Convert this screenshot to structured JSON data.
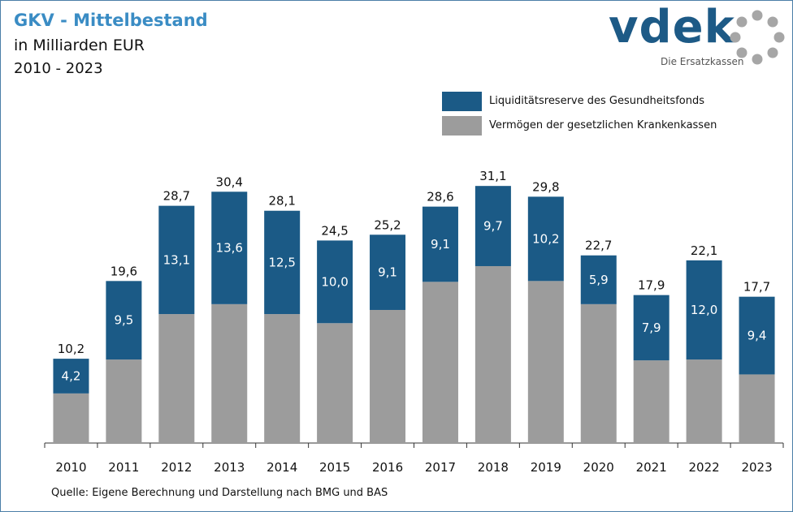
{
  "header": {
    "title": "GKV - Mittelbestand",
    "subtitle": "in Milliarden EUR",
    "period": "2010 - 2023"
  },
  "logo": {
    "wordmark": "vdek",
    "tagline": "Die Ersatzkassen"
  },
  "source": "Quelle: Eigene Berechnung und Darstellung nach BMG und BAS",
  "colors": {
    "reserve": "#1b5a86",
    "assets": "#9c9c9c",
    "title": "#3a8cc4"
  },
  "legend": [
    {
      "label": "Liquiditätsreserve des Gesundheitsfonds",
      "color": "#1b5a86"
    },
    {
      "label": "Vermögen der gesetzlichen Krankenkassen",
      "color": "#9c9c9c"
    }
  ],
  "chart_data": {
    "type": "bar",
    "stacked": true,
    "categories": [
      "2010",
      "2011",
      "2012",
      "2013",
      "2014",
      "2015",
      "2016",
      "2017",
      "2018",
      "2019",
      "2020",
      "2021",
      "2022",
      "2023"
    ],
    "series": [
      {
        "name": "Vermögen der gesetzlichen Krankenkassen",
        "values": [
          6.0,
          10.1,
          15.6,
          16.8,
          15.6,
          14.5,
          16.1,
          19.5,
          21.4,
          19.6,
          16.8,
          10.0,
          10.1,
          8.3
        ]
      },
      {
        "name": "Liquiditätsreserve des Gesundheitsfonds",
        "values": [
          4.2,
          9.5,
          13.1,
          13.6,
          12.5,
          10.0,
          9.1,
          9.1,
          9.7,
          10.2,
          5.9,
          7.9,
          12.0,
          9.4
        ]
      }
    ],
    "segment_labels": [
      "4,2",
      "9,5",
      "13,1",
      "13,6",
      "12,5",
      "10,0",
      "9,1",
      "9,1",
      "9,7",
      "10,2",
      "5,9",
      "7,9",
      "12,0",
      "9,4"
    ],
    "total_labels": [
      "10,2",
      "19,6",
      "28,7",
      "30,4",
      "28,1",
      "24,5",
      "25,2",
      "28,6",
      "31,1",
      "29,8",
      "22,7",
      "17,9",
      "22,1",
      "17,7"
    ],
    "ylim": [
      0,
      32
    ],
    "grid": false,
    "legend_position": "top-right"
  }
}
